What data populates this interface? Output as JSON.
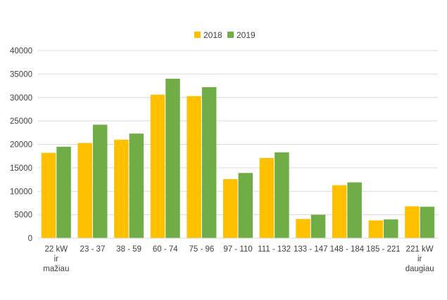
{
  "chart_data": {
    "type": "bar",
    "categories": [
      [
        "22 kW",
        "ir",
        "mažiau"
      ],
      [
        "23 - 37"
      ],
      [
        "38 - 59"
      ],
      [
        "60 - 74"
      ],
      [
        "75 - 96"
      ],
      [
        "97 - 110"
      ],
      [
        "111 - 132"
      ],
      [
        "133 - 147"
      ],
      [
        "148 - 184"
      ],
      [
        "185 - 221"
      ],
      [
        "221 kW",
        "ir",
        "daugiau"
      ]
    ],
    "series": [
      {
        "name": "2018",
        "color": "#FFC000",
        "values": [
          18200,
          20300,
          21000,
          30600,
          30300,
          12600,
          17100,
          4100,
          11300,
          3800,
          6800
        ]
      },
      {
        "name": "2019",
        "color": "#70AD47",
        "values": [
          19500,
          24200,
          22300,
          34000,
          32200,
          13900,
          18300,
          5000,
          11900,
          4000,
          6700
        ]
      }
    ],
    "yticks": [
      "0",
      "5000",
      "10000",
      "15000",
      "20000",
      "25000",
      "30000",
      "35000",
      "40000"
    ],
    "ylim": [
      0,
      40000
    ],
    "grid": true,
    "legend_position": "top-center",
    "gridline_color": "#D9D9D9"
  }
}
